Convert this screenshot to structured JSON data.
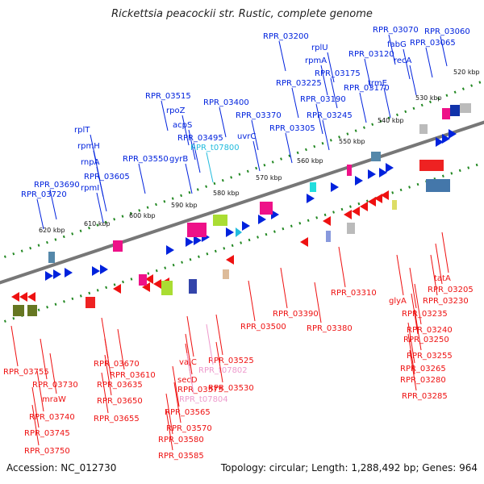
{
  "title": "Rickettsia peacockii str. Rustic, complete genome",
  "footer": {
    "accession": "Accession: NC_012730",
    "summary": "Topology: circular; Length: 1,288,492 bp; Genes: 964"
  },
  "scale_labels": [
    {
      "text": "520 kbp"
    },
    {
      "text": "530 kbp"
    },
    {
      "text": "540 kbp"
    },
    {
      "text": "550 kbp"
    },
    {
      "text": "560 kbp"
    },
    {
      "text": "570 kbp"
    },
    {
      "text": "580 kbp"
    },
    {
      "text": "590 kbp"
    },
    {
      "text": "600 kbp"
    },
    {
      "text": "610 kbp"
    },
    {
      "text": "620 kbp"
    }
  ],
  "top_labels": [
    "RPR_03200",
    "rplU",
    "rpmA",
    "RPR_03175",
    "RPR_03225",
    "RPR_03170",
    "RPR_03190",
    "RPR_03245",
    "RPR_03070",
    "fabG",
    "RPR_03065",
    "RPR_03060",
    "RPR_03120",
    "recA",
    "trmE",
    "RPR_03515",
    "rpoZ",
    "acpS",
    "RPR_03495",
    "RPR_t07800",
    "gyrB",
    "RPR_03550",
    "RPR_03400",
    "RPR_03370",
    "uvrC",
    "RPR_03305",
    "rplT",
    "rpmH",
    "rnpA",
    "RPR_03605",
    "rpmI",
    "RPR_03690",
    "RPR_03720"
  ],
  "bottom_labels": [
    "tatA",
    "RPR_03205",
    "RPR_03230",
    "glyA",
    "RPR_03235",
    "RPR_03240",
    "RPR_03250",
    "RPR_03255",
    "RPR_03265",
    "RPR_03280",
    "RPR_03285",
    "RPR_03310",
    "RPR_03390",
    "RPR_03380",
    "RPR_03500",
    "RPR_03525",
    "RPR_t07802",
    "RPR_03530",
    "vajC",
    "secD",
    "RPR_03575",
    "RPR_t07804",
    "RPR_03565",
    "RPR_03570",
    "RPR_03580",
    "RPR_03585",
    "RPR_03670",
    "RPR_03610",
    "RPR_03635",
    "RPR_03650",
    "RPR_03655",
    "RPR_03755",
    "RPR_03730",
    "mraW",
    "RPR_03740",
    "RPR_03745",
    "RPR_03750"
  ],
  "colors": {
    "forward_genes": "#0022dd",
    "reverse_genes": "#ee1111",
    "trna": "#22bbdd",
    "pseudo": "#ee99cc",
    "backbone": "#777777",
    "tick": "#228822"
  }
}
